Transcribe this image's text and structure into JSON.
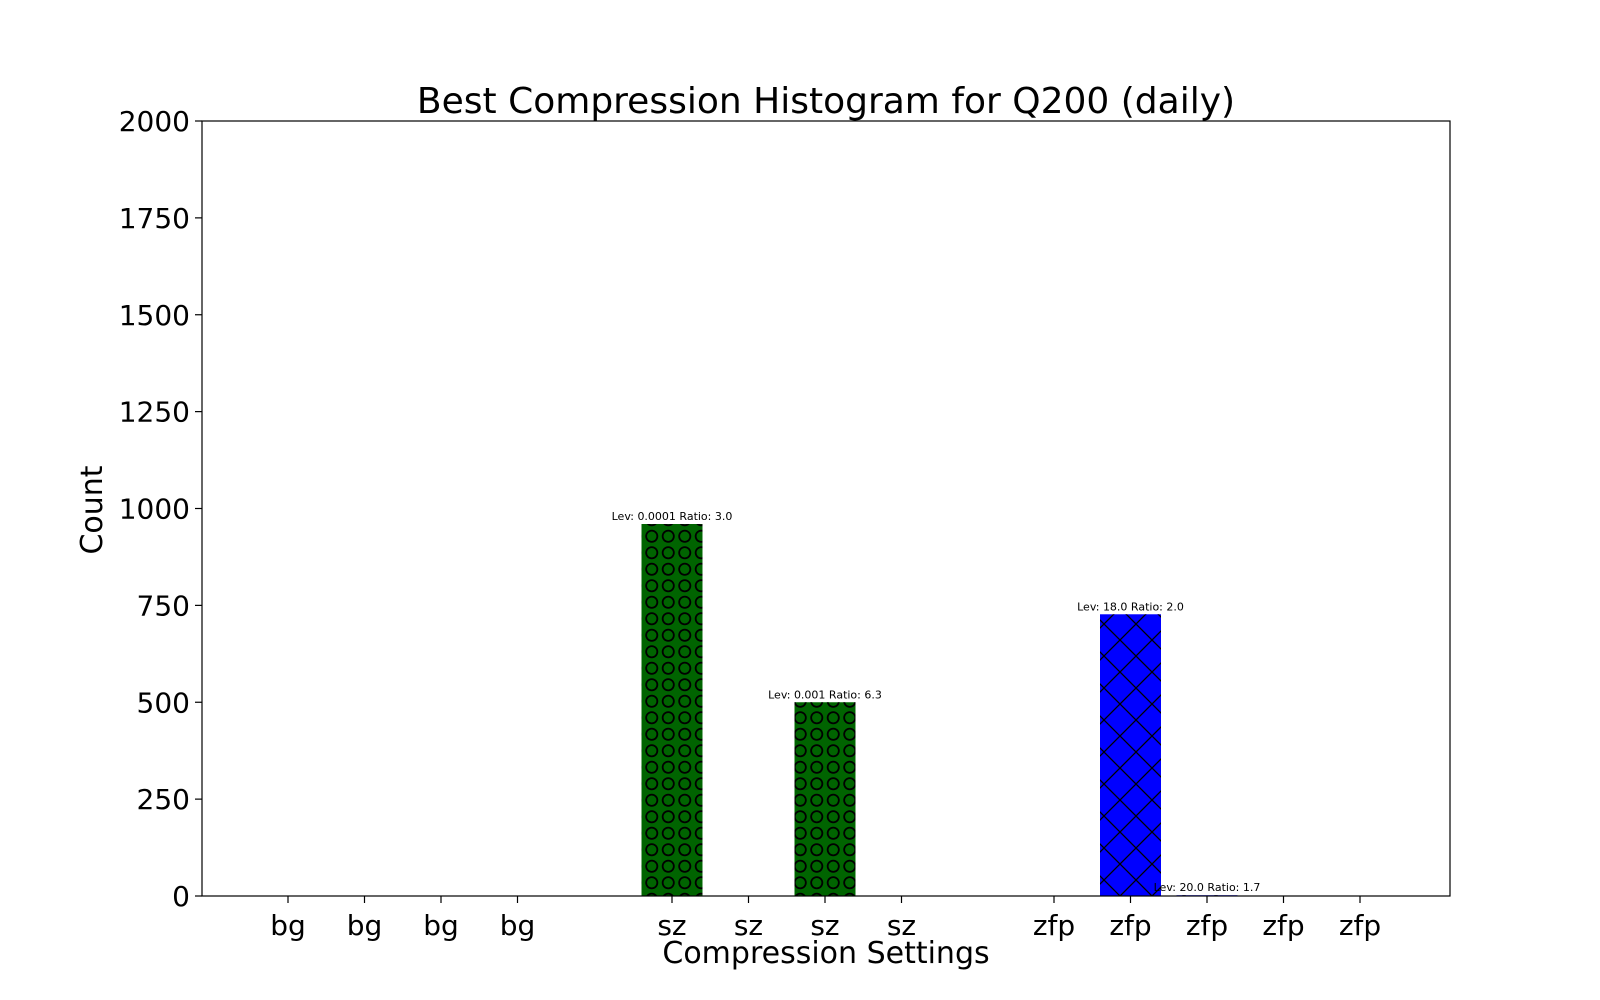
{
  "chart_data": {
    "type": "bar",
    "title": "Best Compression Histogram for Q200 (daily)",
    "xlabel": "Compression Settings",
    "ylabel": "Count",
    "ylim": [
      0,
      2000
    ],
    "y_ticks": [
      0,
      250,
      500,
      750,
      1000,
      1250,
      1500,
      1750,
      2000
    ],
    "grid": false,
    "bars": [
      {
        "category": "bg",
        "group": "bg",
        "value": 0,
        "label": "",
        "color": "#008000",
        "hatch": "circles"
      },
      {
        "category": "bg",
        "group": "bg",
        "value": 0,
        "label": "",
        "color": "#008000",
        "hatch": "circles"
      },
      {
        "category": "bg",
        "group": "bg",
        "value": 0,
        "label": "",
        "color": "#008000",
        "hatch": "circles"
      },
      {
        "category": "bg",
        "group": "bg",
        "value": 0,
        "label": "",
        "color": "#008000",
        "hatch": "circles"
      },
      {
        "category": "sz",
        "group": "sz",
        "value": 960,
        "label": "Lev: 0.0001 Ratio: 3.0",
        "color": "#006400",
        "hatch": "circles"
      },
      {
        "category": "sz",
        "group": "sz",
        "value": 0,
        "label": "",
        "color": "#006400",
        "hatch": "circles"
      },
      {
        "category": "sz",
        "group": "sz",
        "value": 500,
        "label": "Lev: 0.001 Ratio: 6.3",
        "color": "#006400",
        "hatch": "circles"
      },
      {
        "category": "sz",
        "group": "sz",
        "value": 0,
        "label": "",
        "color": "#006400",
        "hatch": "circles"
      },
      {
        "category": "zfp",
        "group": "zfp",
        "value": 0,
        "label": "",
        "color": "#0000ff",
        "hatch": "cross"
      },
      {
        "category": "zfp",
        "group": "zfp",
        "value": 727,
        "label": "Lev: 18.0 Ratio: 2.0",
        "color": "#0000ff",
        "hatch": "cross"
      },
      {
        "category": "zfp",
        "group": "zfp",
        "value": 2,
        "label": "Lev: 20.0 Ratio: 1.7",
        "color": "#0000ff",
        "hatch": "cross"
      },
      {
        "category": "zfp",
        "group": "zfp",
        "value": 0,
        "label": "",
        "color": "#0000ff",
        "hatch": "cross"
      },
      {
        "category": "zfp",
        "group": "zfp",
        "value": 0,
        "label": "",
        "color": "#0000ff",
        "hatch": "cross"
      }
    ]
  }
}
